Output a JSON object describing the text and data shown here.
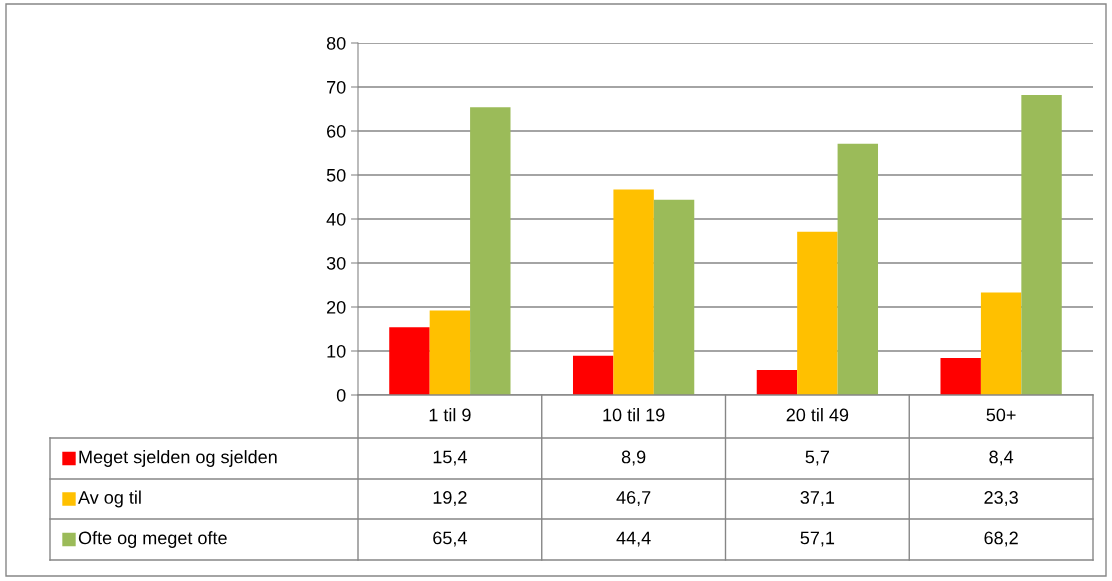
{
  "chart_data": {
    "type": "bar",
    "categories": [
      "1 til 9",
      "10 til 19",
      "20 til 49",
      "50+"
    ],
    "series": [
      {
        "name": "Meget sjelden og sjelden",
        "color": "#ff0000",
        "values": [
          15.4,
          8.9,
          5.7,
          8.4
        ],
        "value_labels": [
          "15,4",
          "8,9",
          "5,7",
          "8,4"
        ]
      },
      {
        "name": "Av og til",
        "color": "#ffc000",
        "values": [
          19.2,
          46.7,
          37.1,
          23.3
        ],
        "value_labels": [
          "19,2",
          "46,7",
          "37,1",
          "23,3"
        ]
      },
      {
        "name": "Ofte og meget ofte",
        "color": "#9bbb59",
        "values": [
          65.4,
          44.4,
          57.1,
          68.2
        ],
        "value_labels": [
          "65,4",
          "44,4",
          "57,1",
          "68,2"
        ]
      }
    ],
    "ylim": [
      0,
      80
    ],
    "yticks": [
      0,
      10,
      20,
      30,
      40,
      50,
      60,
      70,
      80
    ],
    "grid": "y",
    "legend": "bottom"
  }
}
